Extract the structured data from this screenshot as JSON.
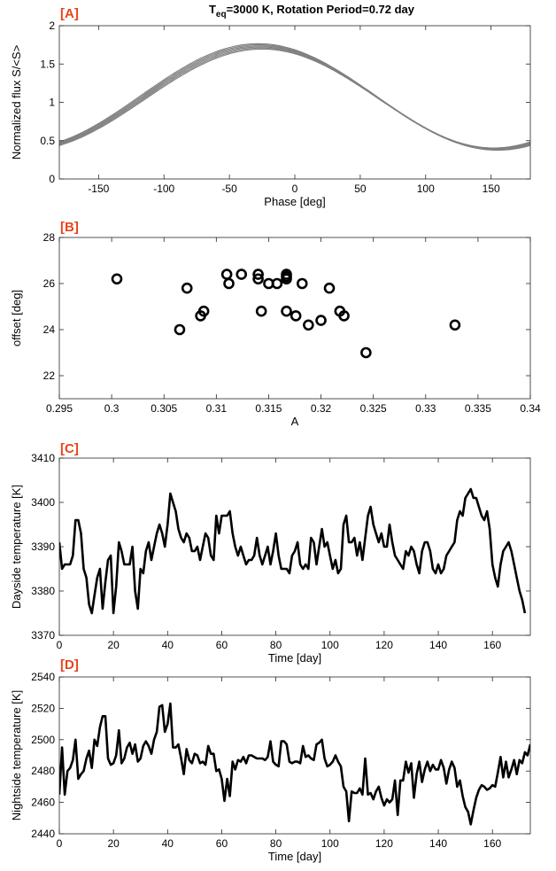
{
  "title": {
    "prefix": "T",
    "sub": "eq",
    "rest": "=3000 K, Rotation Period=0.72 day"
  },
  "chart_data": [
    {
      "panel": "[A]",
      "type": "line",
      "xlabel": "Phase [deg]",
      "ylabel": "Normalized flux S/<S>",
      "xlim": [
        -180,
        180
      ],
      "ylim": [
        0,
        2
      ],
      "xticks": [
        -150,
        -100,
        -50,
        0,
        50,
        100,
        150
      ],
      "yticks": [
        0,
        0.5,
        1,
        1.5,
        2
      ],
      "ytick_labels": [
        "0",
        "0.5",
        "1",
        "1.5",
        "2"
      ],
      "line_color": "#808080",
      "description_params": {
        "mean": 1.06,
        "amplitude": 0.67,
        "peak_phase": -25
      },
      "series": [
        {
          "values_at_phase": {
            "x": [
              -180,
              -150,
              -100,
              -50,
              -25,
              0,
              50,
              100,
              145,
              180
            ],
            "y": [
              0.47,
              0.62,
              1.12,
              1.62,
              1.73,
              1.62,
              1.12,
              0.58,
              0.39,
              0.47
            ]
          }
        }
      ],
      "n_curves": 6
    },
    {
      "panel": "[B]",
      "type": "scatter",
      "xlabel": "A",
      "ylabel": "offset [deg]",
      "xlim": [
        0.295,
        0.34
      ],
      "ylim": [
        21,
        28
      ],
      "xticks": [
        0.295,
        0.3,
        0.305,
        0.31,
        0.315,
        0.32,
        0.325,
        0.33,
        0.335,
        0.34
      ],
      "xtick_labels": [
        "0.295",
        "0.3",
        "0.305",
        "0.31",
        "0.315",
        "0.32",
        "0.325",
        "0.33",
        "0.335",
        "0.34"
      ],
      "yticks": [
        22,
        24,
        26,
        28
      ],
      "x": [
        0.3005,
        0.3065,
        0.3072,
        0.3085,
        0.3088,
        0.311,
        0.3112,
        0.3124,
        0.314,
        0.314,
        0.3143,
        0.315,
        0.3158,
        0.3167,
        0.3167,
        0.3167,
        0.3167,
        0.3176,
        0.3182,
        0.3188,
        0.32,
        0.3208,
        0.3218,
        0.3222,
        0.3243,
        0.3328
      ],
      "y": [
        26.2,
        24.0,
        25.8,
        24.6,
        24.8,
        26.4,
        26.0,
        26.4,
        26.4,
        26.2,
        24.8,
        26.0,
        26.0,
        26.4,
        26.2,
        26.3,
        24.8,
        24.6,
        26.0,
        24.2,
        24.4,
        25.8,
        24.8,
        24.6,
        23.0,
        24.2
      ]
    },
    {
      "panel": "[C]",
      "type": "line",
      "xlabel": "Time [day]",
      "ylabel": "Dayside temperature [K]",
      "xlim": [
        0,
        174
      ],
      "ylim": [
        3370,
        3410
      ],
      "xticks": [
        0,
        20,
        40,
        60,
        80,
        100,
        120,
        140,
        160
      ],
      "yticks": [
        3370,
        3380,
        3390,
        3400,
        3410
      ],
      "x_step": 1,
      "values": [
        3391,
        3385,
        3386,
        3386,
        3386,
        3388,
        3396,
        3396,
        3393,
        3385,
        3383,
        3377,
        3375,
        3379,
        3383,
        3385,
        3376,
        3382,
        3387,
        3388,
        3375,
        3381,
        3391,
        3389,
        3386,
        3386,
        3386,
        3390,
        3380,
        3376,
        3385,
        3384,
        3389,
        3391,
        3387,
        3390,
        3393,
        3395,
        3393,
        3390,
        3395,
        3402,
        3400,
        3398,
        3394,
        3392,
        3391,
        3393,
        3392,
        3389,
        3389,
        3390,
        3387,
        3390,
        3393,
        3392,
        3388,
        3387,
        3397,
        3393,
        3397,
        3397,
        3397,
        3398,
        3393,
        3390,
        3388,
        3390,
        3388,
        3386,
        3387,
        3387,
        3388,
        3392,
        3388,
        3386,
        3388,
        3390,
        3386,
        3389,
        3393,
        3388,
        3385,
        3385,
        3385,
        3384,
        3388,
        3389,
        3391,
        3386,
        3385,
        3386,
        3385,
        3392,
        3391,
        3386,
        3390,
        3394,
        3390,
        3391,
        3388,
        3385,
        3387,
        3384,
        3385,
        3395,
        3397,
        3391,
        3391,
        3392,
        3388,
        3391,
        3387,
        3392,
        3397,
        3399,
        3395,
        3393,
        3391,
        3393,
        3390,
        3390,
        3395,
        3391,
        3388,
        3387,
        3386,
        3385,
        3389,
        3388,
        3390,
        3389,
        3386,
        3384,
        3389,
        3391,
        3391,
        3389,
        3385,
        3384,
        3386,
        3384,
        3385,
        3388,
        3389,
        3390,
        3391,
        3396,
        3398,
        3397,
        3401,
        3402,
        3403,
        3401,
        3401,
        3399,
        3397,
        3396,
        3398,
        3394,
        3386,
        3383,
        3381,
        3386,
        3389,
        3390,
        3391,
        3389,
        3386,
        3383,
        3380,
        3378,
        3375
      ]
    },
    {
      "panel": "[D]",
      "type": "line",
      "xlabel": "Time [day]",
      "ylabel": "Nightside temperature [K]",
      "xlim": [
        0,
        174
      ],
      "ylim": [
        2440,
        2540
      ],
      "xticks": [
        0,
        20,
        40,
        60,
        80,
        100,
        120,
        140,
        160
      ],
      "yticks": [
        2440,
        2460,
        2480,
        2500,
        2520,
        2540
      ],
      "x_step": 1,
      "values": [
        2465,
        2495,
        2465,
        2480,
        2482,
        2487,
        2500,
        2475,
        2478,
        2480,
        2488,
        2493,
        2482,
        2500,
        2496,
        2508,
        2515,
        2515,
        2488,
        2484,
        2485,
        2490,
        2506,
        2485,
        2488,
        2495,
        2498,
        2491,
        2497,
        2486,
        2488,
        2496,
        2499,
        2496,
        2491,
        2500,
        2505,
        2521,
        2522,
        2505,
        2510,
        2523,
        2495,
        2495,
        2497,
        2488,
        2478,
        2494,
        2487,
        2485,
        2491,
        2490,
        2485,
        2486,
        2484,
        2496,
        2491,
        2491,
        2480,
        2481,
        2475,
        2461,
        2475,
        2464,
        2486,
        2481,
        2487,
        2486,
        2489,
        2485,
        2490,
        2490,
        2489,
        2488,
        2488,
        2488,
        2487,
        2489,
        2499,
        2486,
        2484,
        2483,
        2499,
        2499,
        2497,
        2486,
        2485,
        2486,
        2486,
        2485,
        2496,
        2489,
        2490,
        2488,
        2487,
        2497,
        2498,
        2500,
        2488,
        2483,
        2484,
        2486,
        2490,
        2486,
        2483,
        2470,
        2467,
        2448,
        2467,
        2466,
        2466,
        2469,
        2465,
        2488,
        2465,
        2466,
        2462,
        2467,
        2470,
        2463,
        2458,
        2462,
        2460,
        2462,
        2474,
        2452,
        2474,
        2474,
        2486,
        2479,
        2485,
        2463,
        2478,
        2486,
        2473,
        2481,
        2486,
        2480,
        2484,
        2481,
        2481,
        2487,
        2482,
        2472,
        2481,
        2486,
        2482,
        2470,
        2474,
        2464,
        2457,
        2454,
        2446,
        2455,
        2463,
        2468,
        2471,
        2470,
        2468,
        2469,
        2471,
        2470,
        2479,
        2489,
        2476,
        2486,
        2476,
        2481,
        2487,
        2478,
        2487,
        2485,
        2492,
        2490,
        2497
      ]
    }
  ]
}
